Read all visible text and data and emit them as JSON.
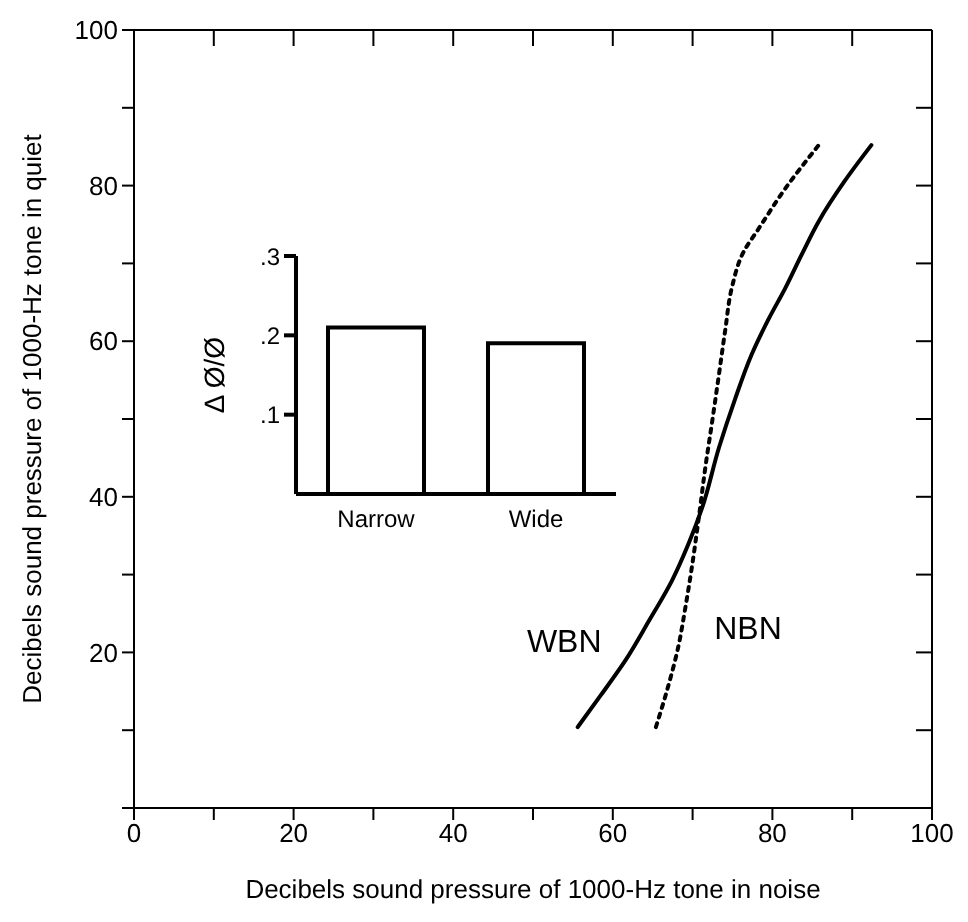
{
  "chart_data": [
    {
      "type": "line",
      "xlabel": "Decibels sound pressure of 1000-Hz tone in noise",
      "ylabel": "Decibels sound pressure of 1000-Hz tone in quiet",
      "xlim": [
        0,
        100
      ],
      "ylim": [
        0,
        100
      ],
      "xticks": [
        0,
        {
          "value": 10,
          "label": null
        },
        20,
        {
          "value": 30,
          "label": null
        },
        40,
        {
          "value": 50,
          "label": null
        },
        60,
        {
          "value": 70,
          "label": null
        },
        80,
        {
          "value": 90,
          "label": null
        },
        100
      ],
      "yticks": [
        {
          "value": 0,
          "label": null
        },
        {
          "value": 10,
          "label": null
        },
        20,
        {
          "value": 30,
          "label": null
        },
        40,
        {
          "value": 50,
          "label": null
        },
        60,
        {
          "value": 70,
          "label": null
        },
        80,
        {
          "value": 90,
          "label": null
        },
        100
      ],
      "series": [
        {
          "name": "WBN",
          "color": "#000000",
          "line_style": "solid",
          "x": [
            55.6,
            58.5,
            61.6,
            64.5,
            67.4,
            69.5,
            71.2,
            73.3,
            75.3,
            77.4,
            79.5,
            81.6,
            83.7,
            85.8,
            89.0,
            92.4
          ],
          "values": [
            10.4,
            14.5,
            19,
            24,
            29.2,
            34,
            38.6,
            46.3,
            52.5,
            58.3,
            62.8,
            66.8,
            71.2,
            75.4,
            80.5,
            85.2
          ]
        },
        {
          "name": "NBN",
          "color": "#000000",
          "line_style": "dotted",
          "x": [
            65.4,
            66.9,
            68.2,
            69.1,
            69.9,
            70.8,
            71.6,
            72.5,
            73.3,
            74.1,
            74.9,
            76.4,
            78.3,
            81.6,
            85.8
          ],
          "values": [
            10.4,
            15.5,
            20.7,
            25.8,
            30.9,
            37.5,
            43.8,
            50,
            55.7,
            61.5,
            66.8,
            71.5,
            74.5,
            79.6,
            85.2
          ]
        }
      ]
    },
    {
      "type": "bar",
      "ylabel": "Δ Ø/Ø",
      "categories": [
        "Narrow",
        "Wide"
      ],
      "values": [
        0.21,
        0.19
      ],
      "color": "#ffffff",
      "ylim": [
        0,
        0.3
      ],
      "yticks": [
        {
          "value": 0.1,
          "label": ".1"
        },
        {
          "value": 0.2,
          "label": ".2"
        },
        {
          "value": 0.3,
          "label": ".3"
        }
      ]
    }
  ]
}
